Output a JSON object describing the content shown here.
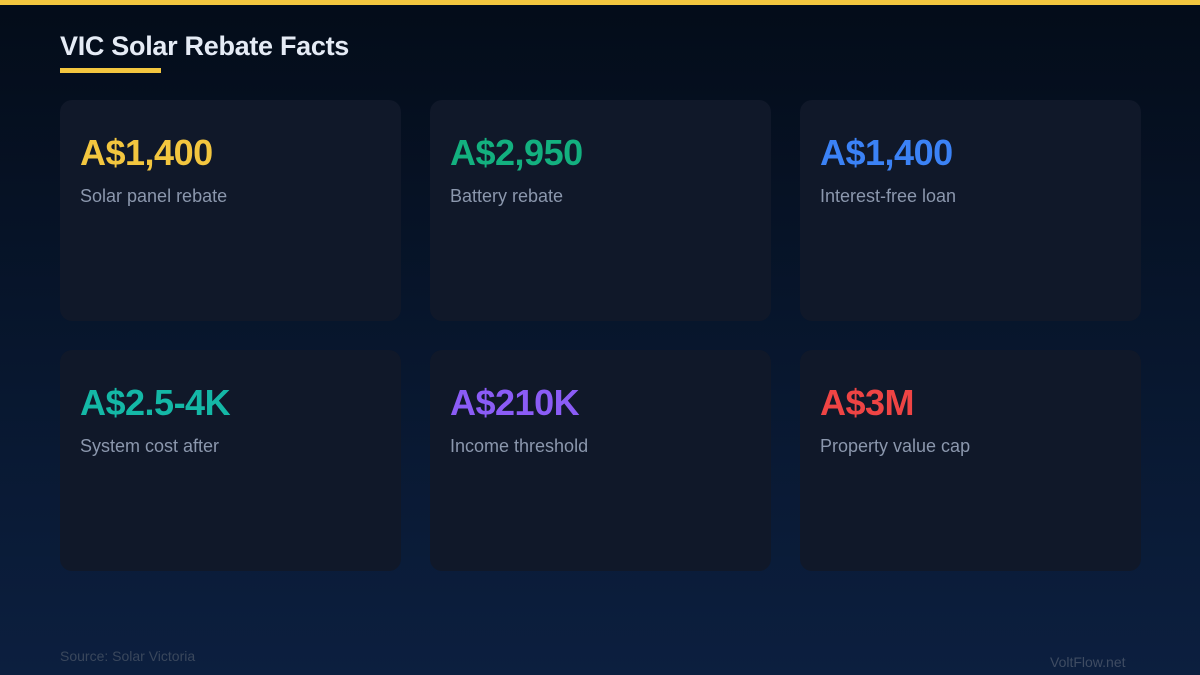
{
  "title": "VIC Solar Rebate Facts",
  "cards": [
    {
      "value": "A$1,400",
      "label": "Solar panel rebate",
      "color": "#f3c63f"
    },
    {
      "value": "A$2,950",
      "label": "Battery rebate",
      "color": "#13b07f"
    },
    {
      "value": "A$1,400",
      "label": "Interest-free loan",
      "color": "#3b82f6"
    },
    {
      "value": "A$2.5-4K",
      "label": "System cost after",
      "color": "#14b8a6"
    },
    {
      "value": "A$210K",
      "label": "Income threshold",
      "color": "#8b5cf6"
    },
    {
      "value": "A$3M",
      "label": "Property value cap",
      "color": "#ef4444"
    }
  ],
  "footer": {
    "source": "Source: Solar Victoria",
    "brand": "VoltFlow.net"
  }
}
